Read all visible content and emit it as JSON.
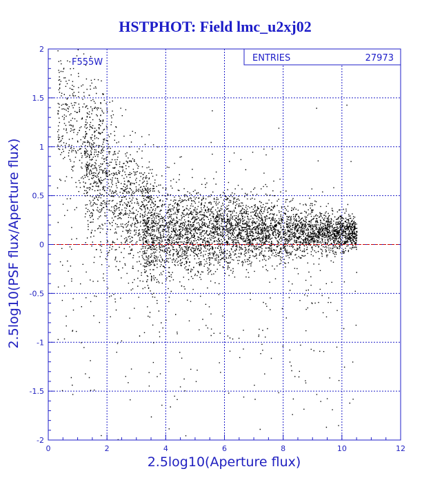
{
  "chart_data": {
    "type": "scatter",
    "title": "HSTPHOT: Field lmc_u2xj02",
    "xlabel": "2.5log10(Aperture flux)",
    "ylabel": "2.5log10(PSF flux/Aperture flux)",
    "xlim": [
      0,
      12
    ],
    "ylim": [
      -2,
      2
    ],
    "xticks": [
      "0",
      "2",
      "4",
      "6",
      "8",
      "10",
      "12"
    ],
    "yticks": [
      "-2",
      "-1.5",
      "-1",
      "-0.5",
      "0",
      "0.5",
      "1",
      "1.5",
      "2"
    ],
    "grid": true,
    "reference_line_y": 0,
    "filter_label": "F555W",
    "stats": {
      "label": "ENTRIES",
      "value": "27973"
    },
    "colors": {
      "axis": "#1c1cc8",
      "points": "#000000",
      "reference_line": "#cc0000",
      "text": "#1c1cc8"
    }
  }
}
